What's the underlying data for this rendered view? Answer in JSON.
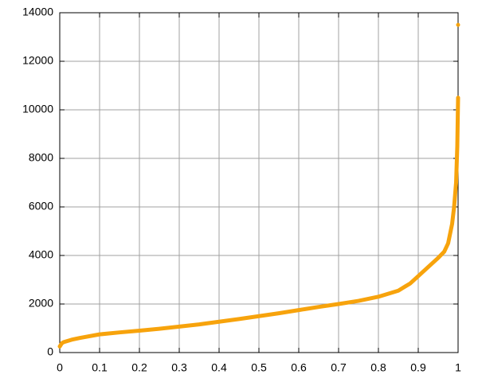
{
  "chart_data": {
    "type": "line",
    "x": [
      0,
      0.005,
      0.01,
      0.03,
      0.05,
      0.1,
      0.15,
      0.2,
      0.25,
      0.3,
      0.35,
      0.4,
      0.45,
      0.5,
      0.55,
      0.6,
      0.65,
      0.7,
      0.75,
      0.8,
      0.85,
      0.88,
      0.9,
      0.93,
      0.95,
      0.965,
      0.975,
      0.985,
      0.99,
      0.995,
      0.998,
      1,
      1,
      1
    ],
    "series": [
      {
        "color": "#f7a30c",
        "values": [
          250,
          380,
          430,
          530,
          600,
          750,
          830,
          900,
          980,
          1070,
          1160,
          1270,
          1380,
          1500,
          1620,
          1750,
          1880,
          2000,
          2130,
          2300,
          2550,
          2850,
          3150,
          3600,
          3900,
          4150,
          4500,
          5300,
          6000,
          7000,
          8500,
          10500,
          null,
          13500
        ]
      }
    ],
    "xlim": [
      0,
      1
    ],
    "ylim": [
      0,
      14000
    ],
    "xticks": [
      0,
      0.1,
      0.2,
      0.3,
      0.4,
      0.5,
      0.6,
      0.7,
      0.8,
      0.9,
      1
    ],
    "yticks": [
      0,
      2000,
      4000,
      6000,
      8000,
      10000,
      12000,
      14000
    ],
    "grid": true
  }
}
